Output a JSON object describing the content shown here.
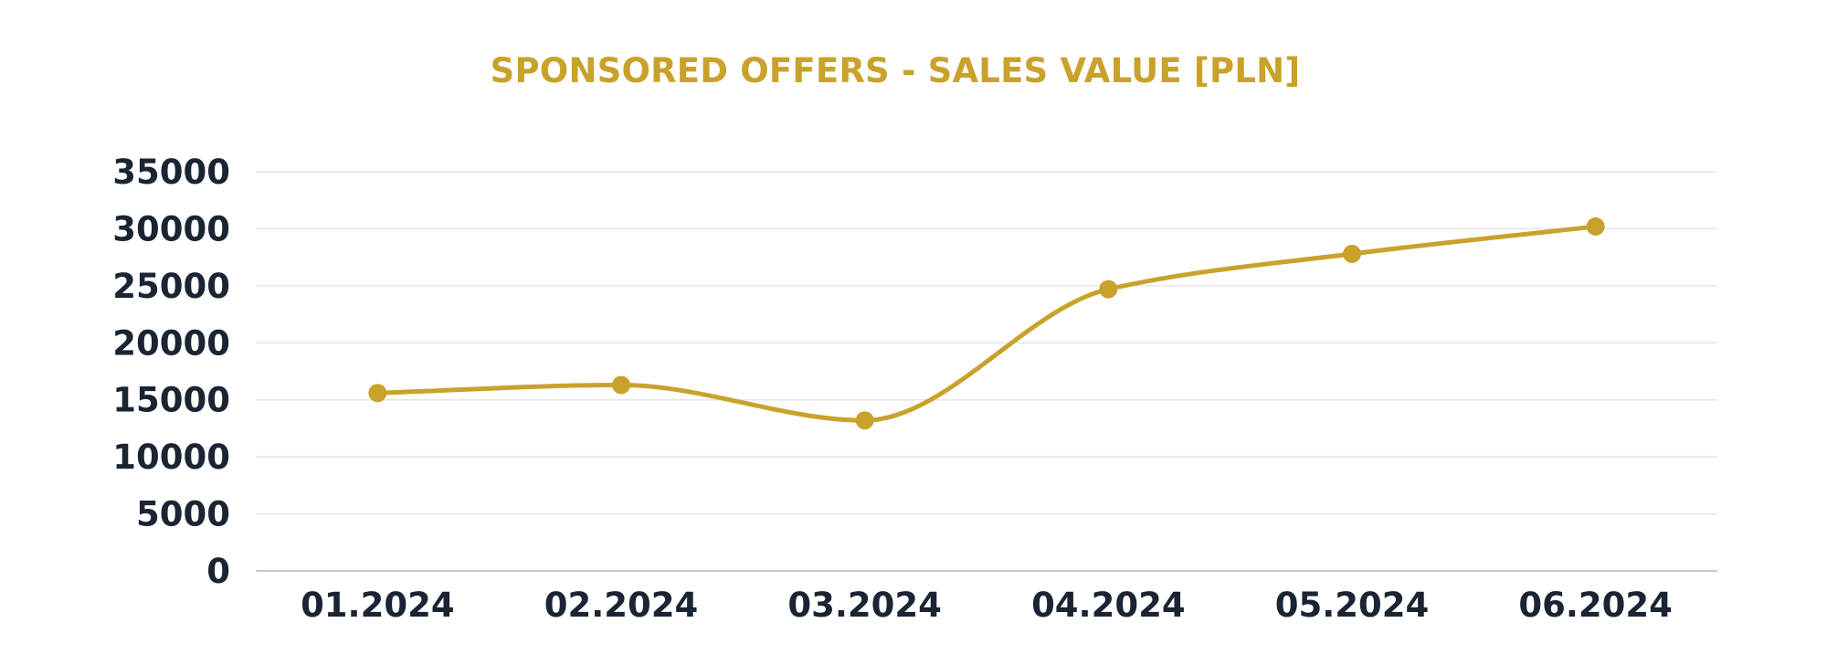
{
  "chart_data": {
    "type": "line",
    "title": "SPONSORED OFFERS - SALES VALUE [PLN]",
    "xlabel": "",
    "ylabel": "",
    "categories": [
      "01.2024",
      "02.2024",
      "03.2024",
      "04.2024",
      "05.2024",
      "06.2024"
    ],
    "series": [
      {
        "values": [
          15600,
          16300,
          13200,
          24700,
          27800,
          30200
        ]
      }
    ],
    "ylim": [
      0,
      35000
    ],
    "yticks": [
      0,
      5000,
      10000,
      15000,
      20000,
      25000,
      30000,
      35000
    ],
    "grid": true,
    "smooth": true,
    "markers": true,
    "legend": "none",
    "colors": {
      "line": "#c9a22c",
      "title": "#c9a22c",
      "tick_labels": "#1a2433",
      "grid": "#e6e6e6",
      "axis": "#c8c8c8"
    }
  }
}
